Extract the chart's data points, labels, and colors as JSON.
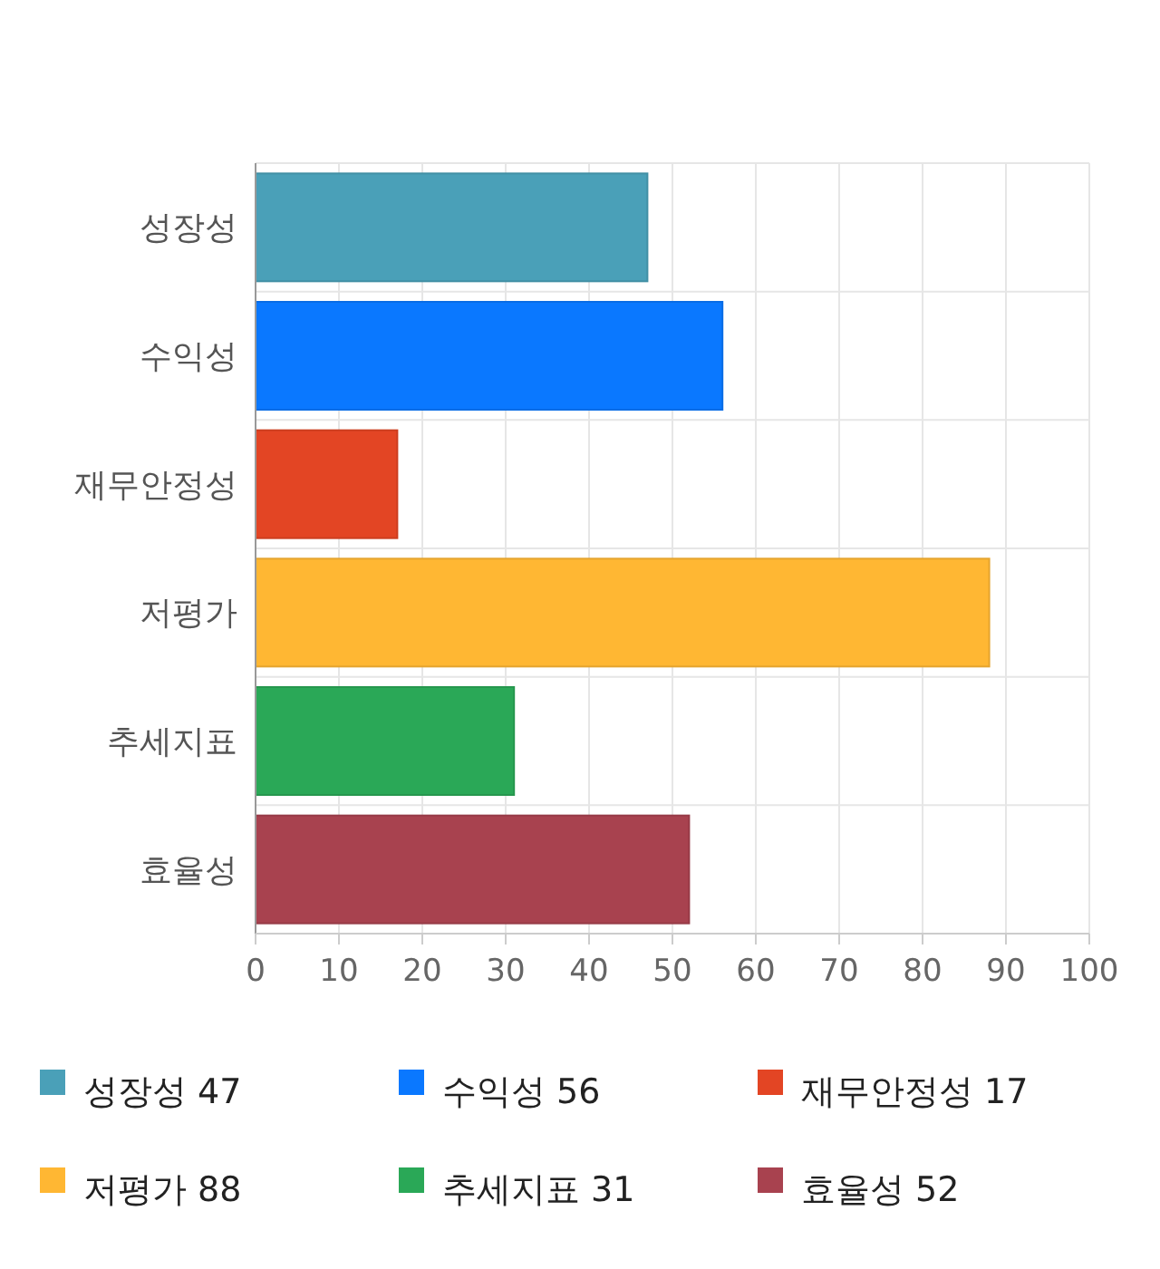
{
  "chart_data": {
    "type": "bar",
    "orientation": "horizontal",
    "stacked": true,
    "categories": [
      "성장성",
      "수익성",
      "재무안정성",
      "저평가",
      "추세지표",
      "효율성"
    ],
    "series": [
      {
        "name": "성장성 47",
        "color": "#4aa0b8",
        "values": [
          47,
          null,
          null,
          null,
          null,
          null
        ]
      },
      {
        "name": "수익성 56",
        "color": "#0a78ff",
        "values": [
          null,
          56,
          null,
          null,
          null,
          null
        ]
      },
      {
        "name": "재무안정성 17",
        "color": "#e34524",
        "values": [
          null,
          null,
          17,
          null,
          null,
          null
        ]
      },
      {
        "name": "저평가 88",
        "color": "#ffb733",
        "values": [
          null,
          null,
          null,
          88,
          null,
          null
        ]
      },
      {
        "name": "추세지표 31",
        "color": "#2aa857",
        "values": [
          null,
          null,
          null,
          null,
          31,
          null
        ]
      },
      {
        "name": "효율성 52",
        "color": "#a8424f",
        "values": [
          null,
          null,
          null,
          null,
          null,
          52
        ]
      }
    ],
    "xlim": [
      0,
      100
    ],
    "xticks": [
      0,
      10,
      20,
      30,
      40,
      50,
      60,
      70,
      80,
      90,
      100
    ],
    "grid": true,
    "legend": "bottom"
  }
}
